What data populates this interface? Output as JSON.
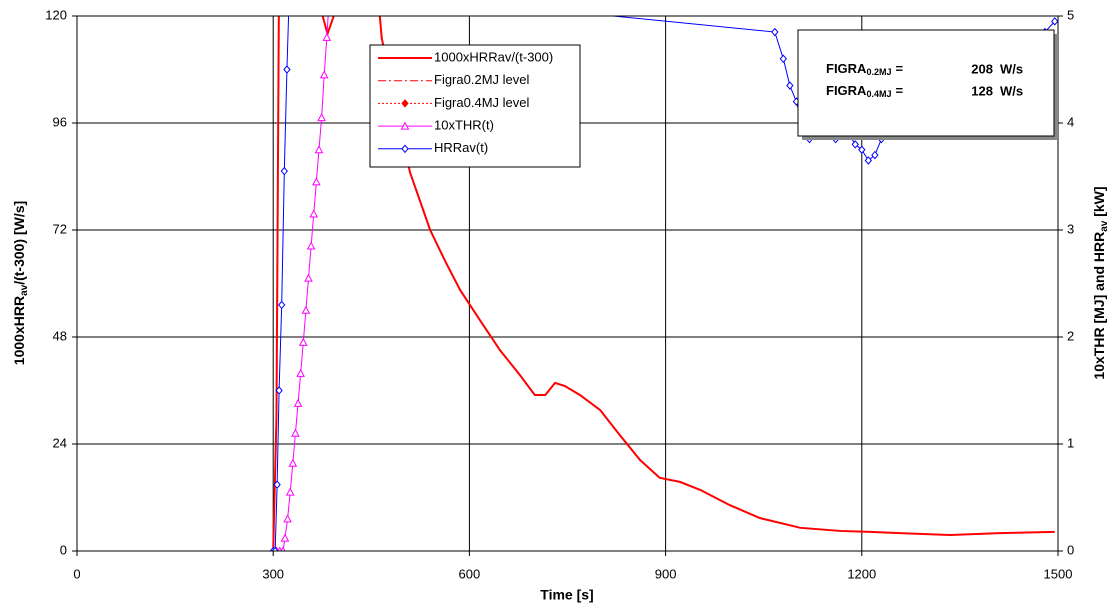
{
  "chart_data": {
    "type": "line",
    "x_label": "Time [s]",
    "y_label": {
      "main": "1000xHRR",
      "sub": "av",
      "rest": "/(t-300) [W/s]"
    },
    "y2_label": {
      "main": "10xTHR [MJ] and HRR",
      "sub": "av",
      "rest": " [kW]"
    },
    "xlim": [
      0,
      1500
    ],
    "xticks": [
      0,
      300,
      600,
      900,
      1200,
      1500
    ],
    "ylim": [
      0,
      120
    ],
    "yticks": [
      0,
      24,
      48,
      72,
      96,
      120
    ],
    "y2lim": [
      0,
      5
    ],
    "y2ticks": [
      0,
      1,
      2,
      3,
      4,
      5
    ],
    "grid": true,
    "series": [
      {
        "name": "1000xHRRav/(t-300)",
        "color": "#ff0000",
        "line_style": "solid",
        "width": 2,
        "marker": "none",
        "x": [
          300,
          305,
          309,
          340,
          372,
          383,
          395,
          402,
          430,
          460,
          466,
          480,
          494,
          509,
          540,
          563,
          586,
          616,
          647,
          677,
          700,
          716,
          731,
          746,
          769,
          800,
          830,
          861,
          891,
          922,
          953,
          998,
          1044,
          1106,
          1167,
          1213,
          1258,
          1335,
          1411,
          1495
        ],
        "values": [
          0,
          30,
          130,
          160,
          122,
          116,
          121,
          125,
          160,
          125,
          115,
          105,
          96,
          85,
          72,
          65,
          58.5,
          51.8,
          45,
          39.5,
          35,
          35,
          37.7,
          37,
          35,
          31.6,
          26,
          20.4,
          16.4,
          15.5,
          13.7,
          10.3,
          7.4,
          5.2,
          4.5,
          4.3,
          4,
          3.6,
          4,
          4.3
        ]
      },
      {
        "name": "Figra0.2MJ level",
        "color": "#ff0000",
        "line_style": "dashdot",
        "width": 1,
        "marker": "none",
        "x": [],
        "values": []
      },
      {
        "name": "Figra0.4MJ level",
        "color": "#ff0000",
        "line_style": "dotted",
        "width": 1,
        "marker": "diamond-filled",
        "x": [],
        "values": []
      },
      {
        "name": "10xTHR(t)",
        "color": "#ff00ff",
        "line_style": "solid",
        "width": 1,
        "marker": "triangle",
        "axis": "y2",
        "x": [
          300,
          305,
          310,
          315,
          318,
          322,
          326,
          330,
          334,
          338,
          342,
          346,
          350,
          354,
          358,
          362,
          366,
          370,
          374,
          378,
          382,
          386
        ],
        "values": [
          0,
          0,
          0,
          0,
          0.12,
          0.3,
          0.55,
          0.82,
          1.1,
          1.38,
          1.66,
          1.95,
          2.25,
          2.55,
          2.85,
          3.15,
          3.45,
          3.75,
          4.05,
          4.45,
          4.8,
          5.2
        ]
      },
      {
        "name": "HRRav(t)",
        "color": "#0000ff",
        "line_style": "solid",
        "width": 1,
        "marker": "diamond",
        "axis": "y2",
        "x": [
          300,
          303,
          306,
          309,
          313,
          317,
          321,
          325,
          1067,
          1080,
          1090,
          1100,
          1110,
          1120,
          1130,
          1140,
          1150,
          1160,
          1170,
          1180,
          1190,
          1200,
          1210,
          1220,
          1230,
          1250,
          1300,
          1350,
          1400,
          1450,
          1480,
          1495
        ],
        "values": [
          0,
          0,
          0.62,
          1.5,
          2.3,
          3.55,
          4.5,
          5.3,
          4.85,
          4.6,
          4.35,
          4.2,
          3.95,
          3.85,
          3.9,
          3.95,
          3.9,
          3.85,
          3.95,
          3.9,
          3.8,
          3.75,
          3.65,
          3.7,
          3.85,
          3.9,
          3.95,
          3.95,
          4.1,
          4.5,
          4.85,
          4.95
        ]
      }
    ],
    "annotations": [
      {
        "label": "FIGRA",
        "sub": "0.2MJ",
        "eq": "=",
        "value": 208,
        "unit": "W/s"
      },
      {
        "label": "FIGRA",
        "sub": "0.4MJ",
        "eq": "=",
        "value": 128,
        "unit": "W/s"
      }
    ]
  }
}
